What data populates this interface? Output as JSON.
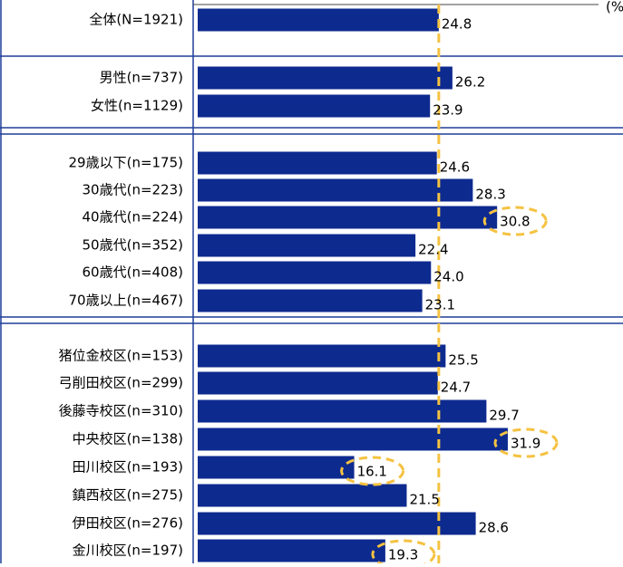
{
  "chart_data": {
    "type": "bar",
    "orientation": "horizontal",
    "unit": "(%)",
    "categories": [
      "全体(N=1921)",
      "男性(n=737)",
      "女性(n=1129)",
      "29歳以下(n=175)",
      "30歳代(n=223)",
      "40歳代(n=224)",
      "50歳代(n=352)",
      "60歳代(n=408)",
      "70歳以上(n=467)",
      "猪位金校区(n=153)",
      "弓削田校区(n=299)",
      "後藤寺校区(n=310)",
      "中央校区(n=138)",
      "田川校区(n=193)",
      "鎮西校区(n=275)",
      "伊田校区(n=276)",
      "金川校区(n=197)"
    ],
    "values": [
      24.8,
      26.2,
      23.9,
      24.6,
      28.3,
      30.8,
      22.4,
      24.0,
      23.1,
      25.5,
      24.7,
      29.7,
      31.9,
      16.1,
      21.5,
      28.6,
      19.3
    ],
    "value_labels": [
      "24.8",
      "26.2",
      "23.9",
      "24.6",
      "28.3",
      "30.8",
      "22.4",
      "24.0",
      "23.1",
      "25.5",
      "24.7",
      "29.7",
      "31.9",
      "16.1",
      "21.5",
      "28.6",
      "19.3"
    ],
    "color": "#0d2a8f",
    "reference_color": "#f5c242",
    "highlighted": [
      5,
      12,
      13,
      16
    ]
  }
}
